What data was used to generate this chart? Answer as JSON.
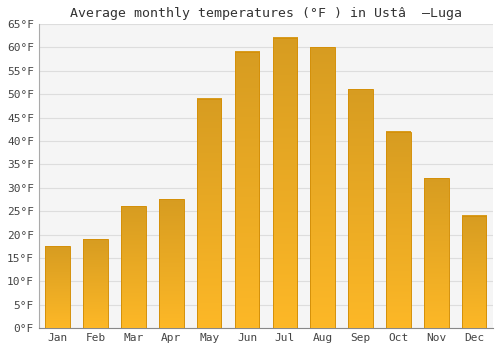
{
  "title": "Average monthly temperatures (°F ) in Ustâ  –Luga",
  "months": [
    "Jan",
    "Feb",
    "Mar",
    "Apr",
    "May",
    "Jun",
    "Jul",
    "Aug",
    "Sep",
    "Oct",
    "Nov",
    "Dec"
  ],
  "values": [
    17.5,
    19.0,
    26.0,
    27.5,
    49.0,
    59.0,
    62.0,
    60.0,
    51.0,
    42.0,
    32.0,
    24.0
  ],
  "bar_color_face": "#FDB827",
  "bar_color_edge": "#D4900A",
  "ylim": [
    0,
    65
  ],
  "yticks": [
    0,
    5,
    10,
    15,
    20,
    25,
    30,
    35,
    40,
    45,
    50,
    55,
    60,
    65
  ],
  "ytick_labels": [
    "0°F",
    "5°F",
    "10°F",
    "15°F",
    "20°F",
    "25°F",
    "30°F",
    "35°F",
    "40°F",
    "45°F",
    "50°F",
    "55°F",
    "60°F",
    "65°F"
  ],
  "background_color": "#ffffff",
  "plot_bg_color": "#f5f5f5",
  "grid_color": "#dddddd",
  "font_family": "monospace",
  "title_fontsize": 9.5,
  "tick_fontsize": 8
}
